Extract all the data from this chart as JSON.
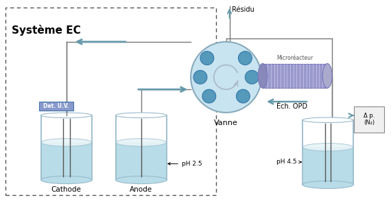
{
  "bg_color": "#ffffff",
  "systeme_ec_label": "Système EC",
  "vanne_label": "Vanne",
  "microreacteur_label": "Microréacteur",
  "ech_opd_label": "Éch. OPD",
  "residu_label": "Résidu",
  "cathode_label": "Cathode",
  "anode_label": "Anode",
  "pH25_label": "pH 2.5",
  "pH45_label": "pH 4.5",
  "det_uv_label": "Det. U.V.",
  "delta_p_label": "Δ p.\n(N₂)",
  "vanne_color": "#c8e4f0",
  "vanne_circle_color": "#5599bb",
  "microreacteur_color": "#9999cc",
  "microreacteur_color2": "#aaaadd",
  "beaker_water_color": "#b8dce8",
  "beaker_foam_color": "#e8f4f8",
  "beaker_outline_color": "#99bbcc",
  "det_uv_color": "#3366aa",
  "det_uv_box_color": "#8899cc",
  "arrow_color": "#6699aa",
  "line_color": "#777777",
  "dashed_box_color": "#555555",
  "vanne_border_color": "#88aabb",
  "microreacteur_border": "#7777bb"
}
